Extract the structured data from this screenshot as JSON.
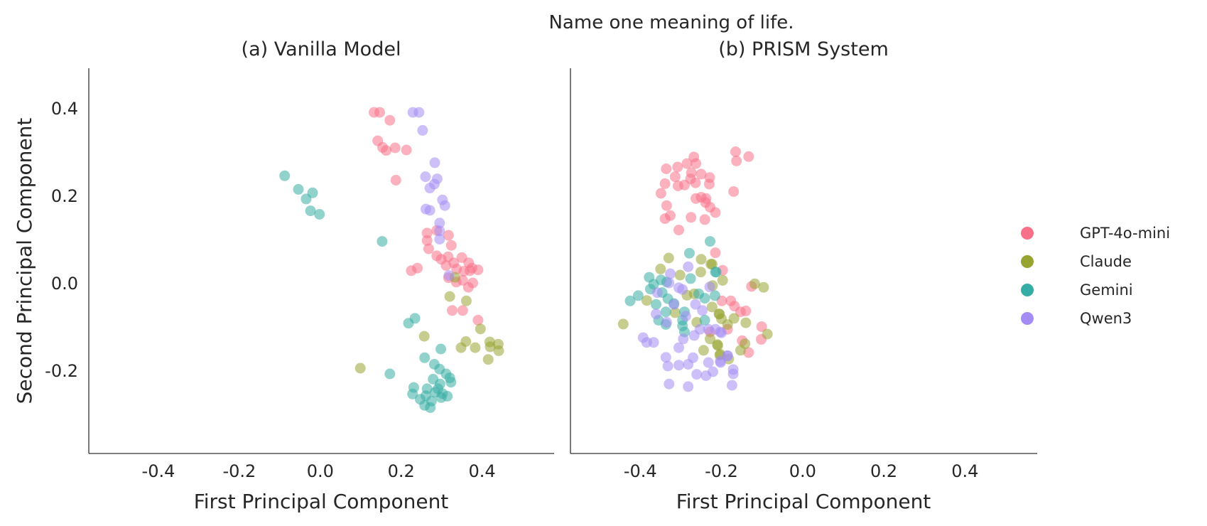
{
  "suptitle": "Name one meaning of life.",
  "legend": {
    "placement": "right",
    "entries": [
      {
        "name": "GPT-4o-mini",
        "color": "#f77189"
      },
      {
        "name": "Claude",
        "color": "#97a431"
      },
      {
        "name": "Gemini",
        "color": "#36ada4"
      },
      {
        "name": "Qwen3",
        "color": "#a48cf4"
      }
    ]
  },
  "chart_data": [
    {
      "type": "scatter",
      "title": "(a) Vanilla Model",
      "xlabel": "First Principal Component",
      "ylabel": "Second Principal Component",
      "xlim": [
        -0.572,
        0.578
      ],
      "ylim": [
        -0.39,
        0.491
      ],
      "xticks": [
        -0.4,
        -0.2,
        0.0,
        0.2,
        0.4
      ],
      "xtick_labels": [
        "-0.4",
        "-0.2",
        "0.0",
        "0.2",
        "0.4"
      ],
      "yticks": [
        0.4,
        0.2,
        0.0,
        -0.2
      ],
      "ytick_labels": [
        "0.4",
        "0.2",
        "0.0",
        "-0.2"
      ],
      "grid": false,
      "series": [
        {
          "name": "GPT-4o-mini",
          "points": [
            [
              0.133,
              0.39
            ],
            [
              0.147,
              0.39
            ],
            [
              0.172,
              0.372
            ],
            [
              0.142,
              0.325
            ],
            [
              0.154,
              0.31
            ],
            [
              0.163,
              0.303
            ],
            [
              0.185,
              0.309
            ],
            [
              0.213,
              0.304
            ],
            [
              0.187,
              0.235
            ],
            [
              0.264,
              0.114
            ],
            [
              0.288,
              0.12
            ],
            [
              0.317,
              0.109
            ],
            [
              0.264,
              0.097
            ],
            [
              0.268,
              0.078
            ],
            [
              0.324,
              0.086
            ],
            [
              0.288,
              0.062
            ],
            [
              0.316,
              0.06
            ],
            [
              0.35,
              0.058
            ],
            [
              0.299,
              0.054
            ],
            [
              0.311,
              0.04
            ],
            [
              0.33,
              0.046
            ],
            [
              0.367,
              0.046
            ],
            [
              0.375,
              0.034
            ],
            [
              0.337,
              0.032
            ],
            [
              0.355,
              0.027
            ],
            [
              0.37,
              0.028
            ],
            [
              0.317,
              0.012
            ],
            [
              0.336,
              0.002
            ],
            [
              0.352,
              0.006
            ],
            [
              0.377,
              0.0
            ],
            [
              0.366,
              -0.01
            ],
            [
              0.225,
              0.028
            ],
            [
              0.24,
              0.034
            ],
            [
              0.326,
              -0.063
            ],
            [
              0.352,
              -0.063
            ],
            [
              0.39,
              -0.085
            ],
            [
              0.39,
              0.03
            ]
          ]
        },
        {
          "name": "Claude",
          "points": [
            [
              0.32,
              -0.031
            ],
            [
              0.361,
              -0.041
            ],
            [
              0.333,
              0.013
            ],
            [
              0.099,
              -0.195
            ],
            [
              0.396,
              -0.105
            ],
            [
              0.257,
              -0.122
            ],
            [
              0.348,
              -0.148
            ],
            [
              0.36,
              -0.134
            ],
            [
              0.383,
              -0.148
            ],
            [
              0.419,
              -0.135
            ],
            [
              0.42,
              -0.146
            ],
            [
              0.44,
              -0.14
            ],
            [
              0.441,
              -0.155
            ],
            [
              0.415,
              -0.175
            ]
          ]
        },
        {
          "name": "Gemini",
          "points": [
            [
              -0.088,
              0.245
            ],
            [
              -0.054,
              0.214
            ],
            [
              -0.019,
              0.206
            ],
            [
              -0.035,
              0.192
            ],
            [
              -0.024,
              0.165
            ],
            [
              -0.002,
              0.157
            ],
            [
              0.153,
              0.095
            ],
            [
              0.218,
              -0.092
            ],
            [
              0.234,
              -0.081
            ],
            [
              0.298,
              -0.151
            ],
            [
              0.258,
              -0.171
            ],
            [
              0.282,
              -0.186
            ],
            [
              0.295,
              -0.197
            ],
            [
              0.311,
              -0.208
            ],
            [
              0.172,
              -0.208
            ],
            [
              0.32,
              -0.217
            ],
            [
              0.323,
              -0.227
            ],
            [
              0.279,
              -0.22
            ],
            [
              0.296,
              -0.231
            ],
            [
              0.291,
              -0.242
            ],
            [
              0.302,
              -0.253
            ],
            [
              0.314,
              -0.259
            ],
            [
              0.299,
              -0.262
            ],
            [
              0.264,
              -0.242
            ],
            [
              0.261,
              -0.258
            ],
            [
              0.231,
              -0.239
            ],
            [
              0.228,
              -0.254
            ],
            [
              0.247,
              -0.266
            ],
            [
              0.258,
              -0.28
            ],
            [
              0.272,
              -0.285
            ],
            [
              0.275,
              -0.27
            ],
            [
              0.284,
              -0.25
            ]
          ]
        },
        {
          "name": "Qwen3",
          "points": [
            [
              0.229,
              0.39
            ],
            [
              0.244,
              0.39
            ],
            [
              0.253,
              0.349
            ],
            [
              0.283,
              0.275
            ],
            [
              0.26,
              0.243
            ],
            [
              0.289,
              0.238
            ],
            [
              0.282,
              0.226
            ],
            [
              0.271,
              0.217
            ],
            [
              0.302,
              0.19
            ],
            [
              0.308,
              0.177
            ],
            [
              0.261,
              0.169
            ],
            [
              0.271,
              0.166
            ],
            [
              0.295,
              0.137
            ],
            [
              0.295,
              0.119
            ],
            [
              0.295,
              0.1
            ],
            [
              0.318,
              0.017
            ]
          ]
        }
      ]
    },
    {
      "type": "scatter",
      "title": "(b) PRISM System",
      "xlabel": "First Principal Component",
      "ylabel": "",
      "xlim": [
        -0.572,
        0.578
      ],
      "ylim": [
        -0.39,
        0.491
      ],
      "xticks": [
        -0.4,
        -0.2,
        0.0,
        0.2,
        0.4
      ],
      "xtick_labels": [
        "-0.4",
        "-0.2",
        "0.0",
        "0.2",
        "0.4"
      ],
      "yticks": [],
      "ytick_labels": [],
      "grid": false,
      "series": [
        {
          "name": "GPT-4o-mini",
          "points": [
            [
              -0.268,
              0.288
            ],
            [
              -0.336,
              0.261
            ],
            [
              -0.308,
              0.265
            ],
            [
              -0.285,
              0.273
            ],
            [
              -0.263,
              0.273
            ],
            [
              -0.314,
              0.243
            ],
            [
              -0.274,
              0.252
            ],
            [
              -0.25,
              0.249
            ],
            [
              -0.229,
              0.241
            ],
            [
              -0.339,
              0.227
            ],
            [
              -0.307,
              0.222
            ],
            [
              -0.291,
              0.224
            ],
            [
              -0.276,
              0.238
            ],
            [
              -0.264,
              0.229
            ],
            [
              -0.23,
              0.226
            ],
            [
              -0.349,
              0.205
            ],
            [
              -0.263,
              0.193
            ],
            [
              -0.25,
              0.196
            ],
            [
              -0.238,
              0.193
            ],
            [
              -0.239,
              0.184
            ],
            [
              -0.228,
              0.173
            ],
            [
              -0.215,
              0.161
            ],
            [
              -0.335,
              0.177
            ],
            [
              -0.326,
              0.154
            ],
            [
              -0.339,
              0.147
            ],
            [
              -0.275,
              0.15
            ],
            [
              -0.241,
              0.145
            ],
            [
              -0.305,
              0.121
            ],
            [
              -0.215,
              0.069
            ],
            [
              -0.165,
              0.3
            ],
            [
              -0.133,
              0.289
            ],
            [
              -0.163,
              0.279
            ],
            [
              -0.17,
              0.209
            ],
            [
              -0.197,
              0.029
            ],
            [
              -0.126,
              -0.008
            ],
            [
              -0.199,
              -0.041
            ],
            [
              -0.177,
              -0.041
            ],
            [
              -0.168,
              -0.053
            ],
            [
              -0.153,
              -0.066
            ],
            [
              -0.14,
              -0.064
            ],
            [
              -0.185,
              -0.106
            ],
            [
              -0.101,
              -0.1
            ],
            [
              -0.102,
              -0.129
            ],
            [
              -0.149,
              -0.132
            ],
            [
              -0.133,
              -0.159
            ],
            [
              -0.228,
              -0.112
            ]
          ]
        },
        {
          "name": "Claude",
          "points": [
            [
              -0.118,
              -0.002
            ],
            [
              -0.096,
              -0.01
            ],
            [
              -0.223,
              0.043
            ],
            [
              -0.197,
              0.006
            ],
            [
              -0.205,
              -0.071
            ],
            [
              -0.2,
              -0.082
            ],
            [
              -0.169,
              -0.081
            ],
            [
              -0.14,
              -0.091
            ],
            [
              -0.185,
              -0.095
            ],
            [
              -0.087,
              -0.117
            ],
            [
              -0.142,
              -0.139
            ],
            [
              -0.153,
              -0.154
            ],
            [
              -0.21,
              -0.141
            ],
            [
              -0.204,
              -0.165
            ],
            [
              -0.182,
              -0.174
            ],
            [
              -0.223,
              -0.055
            ],
            [
              -0.33,
              0.057
            ],
            [
              -0.35,
              0.032
            ],
            [
              -0.25,
              0.054
            ],
            [
              -0.226,
              0.043
            ],
            [
              -0.251,
              0.025
            ],
            [
              -0.302,
              0.018
            ],
            [
              -0.222,
              -0.006
            ],
            [
              -0.384,
              -0.04
            ],
            [
              -0.442,
              -0.094
            ],
            [
              -0.285,
              -0.028
            ],
            [
              -0.267,
              -0.025
            ],
            [
              -0.314,
              -0.068
            ],
            [
              -0.261,
              -0.09
            ],
            [
              -0.206,
              -0.071
            ],
            [
              -0.228,
              -0.128
            ],
            [
              -0.209,
              -0.143
            ],
            [
              -0.244,
              -0.154
            ],
            [
              -0.203,
              -0.163
            ]
          ]
        },
        {
          "name": "Gemini",
          "points": [
            [
              -0.228,
              0.095
            ],
            [
              -0.279,
              0.068
            ],
            [
              -0.215,
              0.025
            ],
            [
              -0.378,
              0.013
            ],
            [
              -0.349,
              0.007
            ],
            [
              -0.335,
              0.002
            ],
            [
              -0.367,
              -0.003
            ],
            [
              -0.375,
              -0.014
            ],
            [
              -0.405,
              -0.029
            ],
            [
              -0.425,
              -0.041
            ],
            [
              -0.346,
              -0.022
            ],
            [
              -0.332,
              -0.036
            ],
            [
              -0.361,
              -0.049
            ],
            [
              -0.276,
              0.01
            ],
            [
              -0.256,
              -0.025
            ],
            [
              -0.241,
              -0.035
            ],
            [
              -0.216,
              -0.029
            ],
            [
              -0.291,
              -0.066
            ],
            [
              -0.337,
              -0.066
            ],
            [
              -0.355,
              -0.085
            ],
            [
              -0.337,
              -0.095
            ],
            [
              -0.296,
              -0.085
            ],
            [
              -0.296,
              -0.098
            ],
            [
              -0.291,
              -0.112
            ],
            [
              -0.241,
              -0.085
            ],
            [
              -0.317,
              -0.047
            ],
            [
              -0.213,
              0.025
            ]
          ]
        },
        {
          "name": "Qwen3",
          "points": [
            [
              -0.282,
              0.037
            ],
            [
              -0.326,
              0.021
            ],
            [
              -0.229,
              -0.009
            ],
            [
              -0.329,
              0.0
            ],
            [
              -0.305,
              -0.011
            ],
            [
              -0.296,
              -0.015
            ],
            [
              -0.358,
              -0.022
            ],
            [
              -0.317,
              -0.049
            ],
            [
              -0.264,
              -0.049
            ],
            [
              -0.247,
              -0.063
            ],
            [
              -0.288,
              -0.076
            ],
            [
              -0.361,
              -0.071
            ],
            [
              -0.335,
              -0.09
            ],
            [
              -0.253,
              -0.106
            ],
            [
              -0.232,
              -0.106
            ],
            [
              -0.215,
              -0.106
            ],
            [
              -0.2,
              -0.114
            ],
            [
              -0.267,
              -0.12
            ],
            [
              -0.294,
              -0.128
            ],
            [
              -0.393,
              -0.125
            ],
            [
              -0.384,
              -0.136
            ],
            [
              -0.367,
              -0.136
            ],
            [
              -0.305,
              -0.148
            ],
            [
              -0.337,
              -0.17
            ],
            [
              -0.332,
              -0.19
            ],
            [
              -0.305,
              -0.188
            ],
            [
              -0.282,
              -0.186
            ],
            [
              -0.27,
              -0.171
            ],
            [
              -0.232,
              -0.182
            ],
            [
              -0.203,
              -0.179
            ],
            [
              -0.185,
              -0.167
            ],
            [
              -0.261,
              -0.209
            ],
            [
              -0.238,
              -0.212
            ],
            [
              -0.221,
              -0.203
            ],
            [
              -0.171,
              -0.208
            ],
            [
              -0.329,
              -0.231
            ],
            [
              -0.282,
              -0.237
            ],
            [
              -0.174,
              -0.234
            ],
            [
              -0.203,
              -0.112
            ],
            [
              -0.185,
              -0.166
            ],
            [
              -0.202,
              -0.182
            ],
            [
              -0.171,
              -0.198
            ]
          ]
        }
      ]
    }
  ]
}
